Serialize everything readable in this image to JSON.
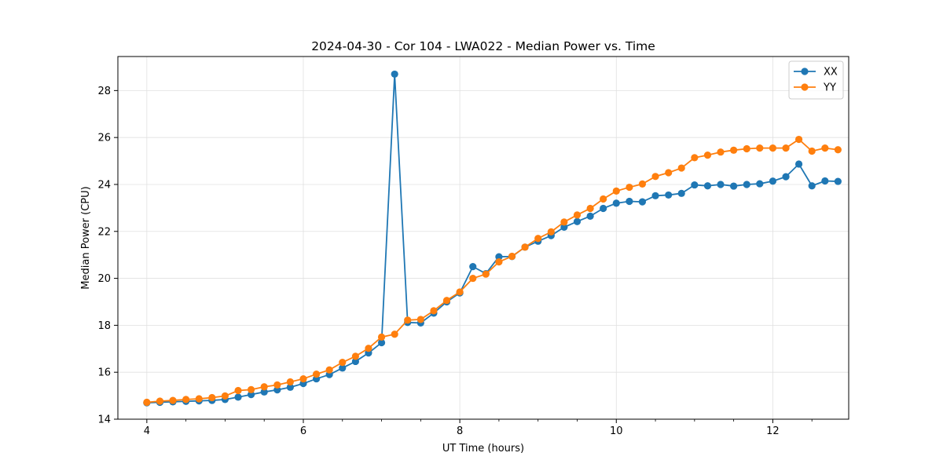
{
  "chart_data": {
    "type": "line",
    "title": "2024-04-30 - Cor 104 - LWA022 - Median Power vs. Time",
    "xlabel": "UT Time (hours)",
    "ylabel": "Median Power (CPU)",
    "xlim": [
      3.63,
      12.97
    ],
    "ylim": [
      14,
      29.45
    ],
    "xticks": [
      4,
      6,
      8,
      10,
      12
    ],
    "xtick_labels": [
      "4",
      "6",
      "8",
      "10",
      "12"
    ],
    "yticks": [
      14,
      16,
      18,
      20,
      22,
      24,
      26,
      28
    ],
    "ytick_labels": [
      "14",
      "16",
      "18",
      "20",
      "22",
      "24",
      "26",
      "28"
    ],
    "grid": true,
    "legend_position": "top-right",
    "x": [
      4.0,
      4.167,
      4.333,
      4.5,
      4.667,
      4.833,
      5.0,
      5.167,
      5.333,
      5.5,
      5.667,
      5.833,
      6.0,
      6.167,
      6.333,
      6.5,
      6.667,
      6.833,
      7.0,
      7.167,
      7.333,
      7.5,
      7.667,
      7.833,
      8.0,
      8.167,
      8.333,
      8.5,
      8.667,
      8.833,
      9.0,
      9.167,
      9.333,
      9.5,
      9.667,
      9.833,
      10.0,
      10.167,
      10.333,
      10.5,
      10.667,
      10.833,
      11.0,
      11.167,
      11.333,
      11.5,
      11.667,
      11.833,
      12.0,
      12.167,
      12.333,
      12.5,
      12.667,
      12.833
    ],
    "series": [
      {
        "name": "XX",
        "color": "#1f77b4",
        "values": [
          14.7,
          14.72,
          14.74,
          14.76,
          14.78,
          14.8,
          14.84,
          14.94,
          15.05,
          15.16,
          15.25,
          15.36,
          15.52,
          15.72,
          15.9,
          16.18,
          16.46,
          16.82,
          17.26,
          28.7,
          18.12,
          18.1,
          18.52,
          19.0,
          19.38,
          20.5,
          20.2,
          20.92,
          20.93,
          21.33,
          21.58,
          21.82,
          22.18,
          22.42,
          22.65,
          22.98,
          23.2,
          23.28,
          23.26,
          23.52,
          23.55,
          23.62,
          23.98,
          23.94,
          24.0,
          23.93,
          24.0,
          24.03,
          24.14,
          24.33,
          24.87,
          23.94,
          24.15,
          24.13
        ]
      },
      {
        "name": "YY",
        "color": "#ff7f0e",
        "values": [
          14.72,
          14.77,
          14.8,
          14.84,
          14.87,
          14.92,
          14.99,
          15.22,
          15.26,
          15.38,
          15.46,
          15.59,
          15.72,
          15.92,
          16.1,
          16.42,
          16.68,
          17.02,
          17.5,
          17.62,
          18.22,
          18.25,
          18.62,
          19.06,
          19.42,
          20.0,
          20.18,
          20.7,
          20.94,
          21.33,
          21.7,
          21.98,
          22.4,
          22.7,
          22.98,
          23.38,
          23.72,
          23.88,
          24.02,
          24.34,
          24.5,
          24.7,
          25.14,
          25.25,
          25.38,
          25.46,
          25.52,
          25.55,
          25.55,
          25.55,
          25.92,
          25.42,
          25.55,
          25.48
        ]
      }
    ]
  }
}
